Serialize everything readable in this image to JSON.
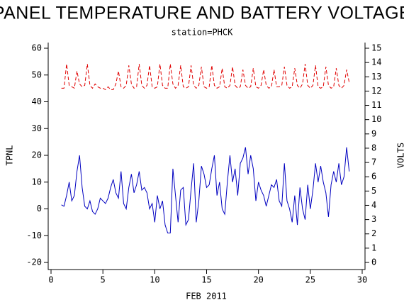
{
  "chart_data": {
    "type": "line",
    "title": "PANEL TEMPERATURE AND BATTERY VOLTAGE",
    "subtitle": "station=PHCK",
    "xlabel": "FEB 2011",
    "ylabel": "TPNL",
    "y2label": "VOLTS",
    "xlim": [
      0,
      30
    ],
    "xticks": [
      0,
      5,
      10,
      15,
      20,
      25,
      30
    ],
    "ylim": [
      -20,
      60
    ],
    "yticks": [
      -20,
      -10,
      0,
      10,
      20,
      30,
      40,
      50,
      60
    ],
    "y2lim": [
      0,
      15
    ],
    "y2ticks": [
      0,
      1,
      2,
      3,
      4,
      5,
      6,
      7,
      8,
      9,
      10,
      11,
      12,
      13,
      14,
      15
    ],
    "x": [
      1,
      1.25,
      1.5,
      1.75,
      2,
      2.25,
      2.5,
      2.75,
      3,
      3.25,
      3.5,
      3.75,
      4,
      4.25,
      4.5,
      4.75,
      5,
      5.25,
      5.5,
      5.75,
      6,
      6.25,
      6.5,
      6.75,
      7,
      7.25,
      7.5,
      7.75,
      8,
      8.25,
      8.5,
      8.75,
      9,
      9.25,
      9.5,
      9.75,
      10,
      10.25,
      10.5,
      10.75,
      11,
      11.25,
      11.5,
      11.75,
      12,
      12.25,
      12.5,
      12.75,
      13,
      13.25,
      13.5,
      13.75,
      14,
      14.25,
      14.5,
      14.75,
      15,
      15.25,
      15.5,
      15.75,
      16,
      16.25,
      16.5,
      16.75,
      17,
      17.25,
      17.5,
      17.75,
      18,
      18.25,
      18.5,
      18.75,
      19,
      19.25,
      19.5,
      19.75,
      20,
      20.25,
      20.5,
      20.75,
      21,
      21.25,
      21.5,
      21.75,
      22,
      22.25,
      22.5,
      22.75,
      23,
      23.25,
      23.5,
      23.75,
      24,
      24.25,
      24.5,
      24.75,
      25,
      25.25,
      25.5,
      25.75,
      26,
      26.25,
      26.5,
      26.75,
      27,
      27.25,
      27.5,
      27.75,
      28,
      28.25,
      28.5,
      28.75
    ],
    "series": [
      {
        "name": "TPNL",
        "color": "#0000c0",
        "dash": false,
        "axis": "y",
        "values": [
          1.5,
          1,
          5,
          10,
          3,
          5,
          14,
          20,
          8,
          1,
          0,
          3,
          -1,
          -2,
          0,
          4,
          3,
          2,
          4,
          8,
          11,
          6,
          4,
          14,
          2,
          0,
          8,
          13,
          6,
          9,
          14,
          7,
          8,
          6,
          0,
          2,
          -5,
          5,
          0,
          3,
          -6,
          -9,
          -9,
          15,
          5,
          -5,
          7,
          8,
          -6,
          -4,
          7,
          17,
          -5,
          3,
          16,
          13,
          8,
          9,
          15,
          20,
          5,
          10,
          0,
          -2,
          10,
          20,
          10,
          15,
          5,
          17,
          19,
          23,
          13,
          20,
          15,
          3,
          10,
          7,
          5,
          1,
          5,
          9,
          8,
          11,
          3,
          1,
          17,
          3,
          0,
          -5,
          5,
          -6,
          8,
          0,
          -4,
          9,
          0,
          7,
          17,
          10,
          16,
          10,
          6,
          -3,
          9,
          14,
          10,
          17,
          9,
          12,
          23,
          14
        ]
      },
      {
        "name": "VOLTS",
        "color": "#e00000",
        "dash": true,
        "axis": "y2",
        "values": [
          12.2,
          12.2,
          13.9,
          12.4,
          12.3,
          12.2,
          13.4,
          12.5,
          12.3,
          12.4,
          13.9,
          12.4,
          12.2,
          12.5,
          12.3,
          12.2,
          12.2,
          12.1,
          12.3,
          12.1,
          12.1,
          12.5,
          13.4,
          12.3,
          12.2,
          12.4,
          13.8,
          12.5,
          12.2,
          12.3,
          13.9,
          12.4,
          12.2,
          12.4,
          13.8,
          12.3,
          12.2,
          12.3,
          13.9,
          12.4,
          12.2,
          12.2,
          13.9,
          12.5,
          12.2,
          12.4,
          13.8,
          12.3,
          12.2,
          12.3,
          13.8,
          12.4,
          12.2,
          12.4,
          13.7,
          12.3,
          12.2,
          12.3,
          13.8,
          12.4,
          12.2,
          12.3,
          13.6,
          12.3,
          12.2,
          12.4,
          13.7,
          12.4,
          12.2,
          12.3,
          13.5,
          12.4,
          12.2,
          12.3,
          13.6,
          12.3,
          12.2,
          12.4,
          13.5,
          12.4,
          12.2,
          12.3,
          13.5,
          12.3,
          12.3,
          12.4,
          13.7,
          12.4,
          12.2,
          12.3,
          13.6,
          12.4,
          12.2,
          12.5,
          13.9,
          12.4,
          12.2,
          12.4,
          13.8,
          12.3,
          12.2,
          12.3,
          13.7,
          12.4,
          12.2,
          12.3,
          13.6,
          12.4,
          12.2,
          12.4,
          13.5,
          12.6
        ]
      }
    ]
  }
}
